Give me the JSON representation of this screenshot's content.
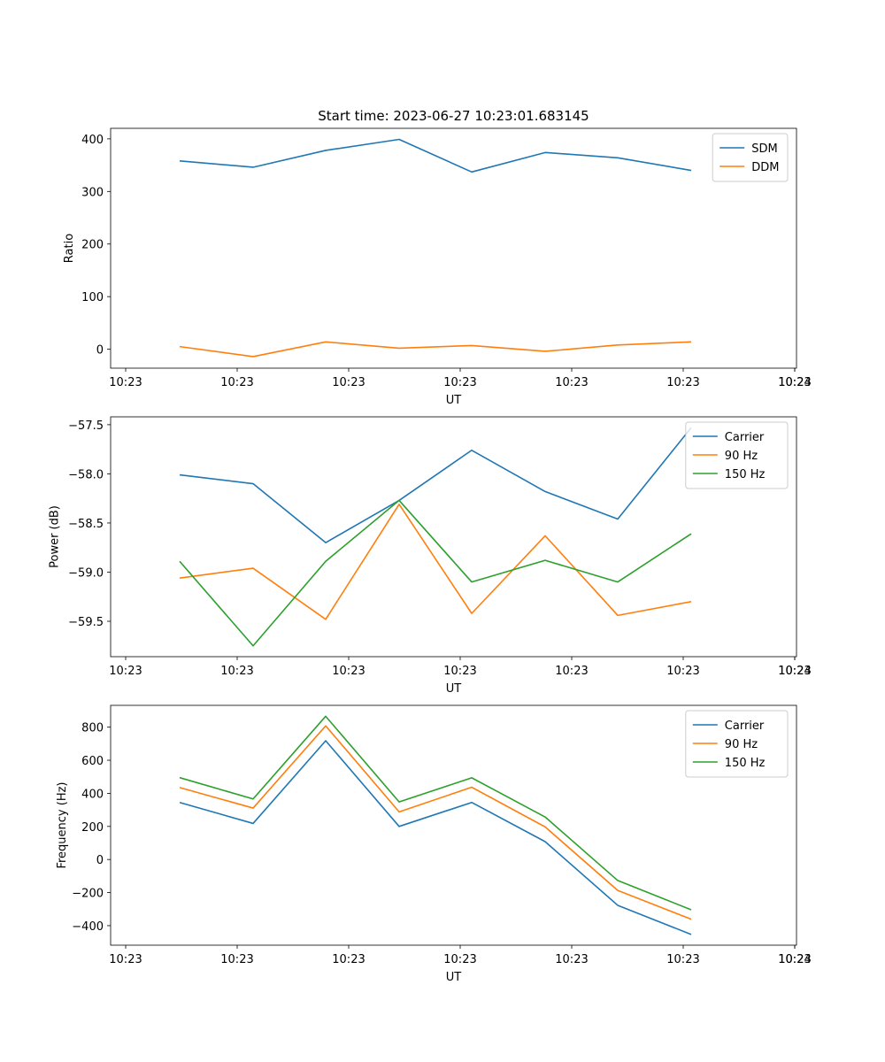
{
  "title": "Start time: 2023-06-27 10:23:01.683145",
  "chart_data": [
    {
      "type": "line",
      "title": "",
      "xlabel": "UT",
      "ylabel": "Ratio",
      "x_tick_labels": [
        "10:23",
        "10:23",
        "10:23",
        "10:23",
        "10:23",
        "10:23",
        "10:23",
        "10:24"
      ],
      "y_ticks": [
        0,
        100,
        200,
        300,
        400
      ],
      "ylim": [
        -36,
        420
      ],
      "legend_position": "upper-right",
      "grid": false,
      "series": [
        {
          "name": "SDM",
          "color": "#1f77b4",
          "values": [
            358,
            346,
            378,
            399,
            337,
            374,
            364,
            340
          ]
        },
        {
          "name": "DDM",
          "color": "#ff7f0e",
          "values": [
            5,
            -14,
            14,
            2,
            7,
            -4,
            8,
            14
          ]
        }
      ]
    },
    {
      "type": "line",
      "title": "",
      "xlabel": "UT",
      "ylabel": "Power (dB)",
      "x_tick_labels": [
        "10:23",
        "10:23",
        "10:23",
        "10:23",
        "10:23",
        "10:23",
        "10:23",
        "10:24"
      ],
      "y_ticks": [
        -59.5,
        -59.0,
        -58.5,
        -58.0,
        -57.5
      ],
      "y_tick_labels": [
        "−59.5",
        "−59.0",
        "−58.5",
        "−58.0",
        "−57.5"
      ],
      "ylim": [
        -59.86,
        -57.42
      ],
      "legend_position": "upper-right",
      "grid": false,
      "series": [
        {
          "name": "Carrier",
          "color": "#1f77b4",
          "values": [
            -58.01,
            -58.1,
            -58.7,
            -58.27,
            -57.76,
            -58.18,
            -58.46,
            -57.53
          ]
        },
        {
          "name": "90 Hz",
          "color": "#ff7f0e",
          "values": [
            -59.06,
            -58.96,
            -59.48,
            -58.31,
            -59.42,
            -58.63,
            -59.44,
            -59.3
          ]
        },
        {
          "name": "150 Hz",
          "color": "#2ca02c",
          "values": [
            -58.89,
            -59.75,
            -58.89,
            -58.27,
            -59.1,
            -58.88,
            -59.1,
            -58.61
          ]
        }
      ]
    },
    {
      "type": "line",
      "title": "",
      "xlabel": "UT",
      "ylabel": "Frequency (Hz)",
      "x_tick_labels": [
        "10:23",
        "10:23",
        "10:23",
        "10:23",
        "10:23",
        "10:23",
        "10:23",
        "10:24"
      ],
      "y_ticks": [
        -400,
        -200,
        0,
        200,
        400,
        600,
        800
      ],
      "y_tick_labels": [
        "−400",
        "−200",
        "0",
        "200",
        "400",
        "600",
        "800"
      ],
      "ylim": [
        -518,
        932
      ],
      "legend_position": "upper-right",
      "grid": false,
      "series": [
        {
          "name": "Carrier",
          "color": "#1f77b4",
          "values": [
            345,
            218,
            718,
            200,
            345,
            108,
            -277,
            -453
          ]
        },
        {
          "name": "90 Hz",
          "color": "#ff7f0e",
          "values": [
            435,
            311,
            808,
            288,
            437,
            197,
            -187,
            -361
          ]
        },
        {
          "name": "150 Hz",
          "color": "#2ca02c",
          "values": [
            495,
            366,
            866,
            348,
            494,
            257,
            -127,
            -304
          ]
        }
      ]
    }
  ]
}
